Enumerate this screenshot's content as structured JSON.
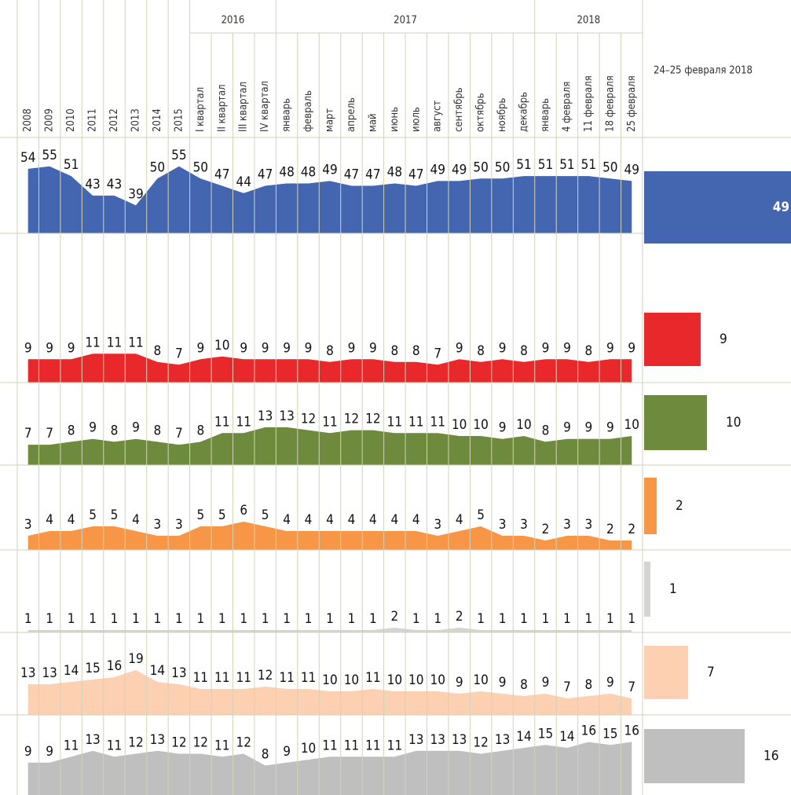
{
  "chart_data": {
    "type": "area",
    "categories": [
      "2008",
      "2009",
      "2010",
      "2011",
      "2012",
      "2013",
      "2014",
      "2015",
      "I квартал",
      "II квартал",
      "III квартал",
      "IV квартал",
      "январь",
      "февраль",
      "март",
      "апрель",
      "май",
      "июнь",
      "июль",
      "август",
      "сентябрь",
      "октябрь",
      "ноябрь",
      "декабрь",
      "январь",
      "4 февраля",
      "11 февраля",
      "18 февраля",
      "25 февраля"
    ],
    "groups": [
      "2016",
      "2017",
      "2018"
    ],
    "series": [
      {
        "color": "#4466b0",
        "values": [
          54,
          55,
          51,
          43,
          43,
          39,
          50,
          55,
          50,
          47,
          44,
          47,
          48,
          48,
          49,
          47,
          47,
          48,
          47,
          49,
          49,
          50,
          50,
          51,
          51,
          51,
          51,
          50,
          49
        ]
      },
      {
        "color": "#e8282b",
        "values": [
          9,
          9,
          9,
          11,
          11,
          11,
          8,
          7,
          9,
          10,
          9,
          9,
          9,
          9,
          8,
          9,
          9,
          8,
          8,
          7,
          9,
          8,
          9,
          8,
          9,
          9,
          8,
          9,
          9
        ]
      },
      {
        "color": "#6e8b3d",
        "values": [
          7,
          7,
          8,
          9,
          8,
          9,
          8,
          7,
          8,
          11,
          11,
          13,
          13,
          12,
          11,
          12,
          12,
          11,
          11,
          11,
          10,
          10,
          9,
          10,
          8,
          9,
          9,
          9,
          10
        ]
      },
      {
        "color": "#f79646",
        "values": [
          3,
          4,
          4,
          5,
          5,
          4,
          3,
          3,
          5,
          5,
          6,
          5,
          4,
          4,
          4,
          4,
          4,
          4,
          4,
          3,
          4,
          5,
          3,
          3,
          2,
          3,
          3,
          2,
          2
        ]
      },
      {
        "color": "#d4d4d4",
        "values": [
          1,
          1,
          1,
          1,
          1,
          1,
          1,
          1,
          1,
          1,
          1,
          1,
          1,
          1,
          1,
          1,
          1,
          2,
          1,
          1,
          2,
          1,
          1,
          1,
          1,
          1,
          1,
          1,
          1
        ]
      },
      {
        "color": "#fcd0b0",
        "values": [
          13,
          13,
          14,
          15,
          16,
          19,
          14,
          13,
          11,
          11,
          11,
          12,
          11,
          11,
          10,
          10,
          11,
          10,
          10,
          10,
          9,
          10,
          9,
          8,
          9,
          7,
          8,
          9,
          7
        ]
      },
      {
        "color": "#bfbfbf",
        "values": [
          9,
          9,
          11,
          13,
          11,
          12,
          13,
          12,
          12,
          11,
          12,
          8,
          9,
          10,
          11,
          11,
          11,
          11,
          13,
          13,
          13,
          12,
          13,
          14,
          15,
          14,
          16,
          15,
          16
        ]
      }
    ],
    "latest": {
      "title": "24–25 февраля 2018",
      "values": [
        49,
        9,
        10,
        2,
        1,
        7,
        16
      ]
    }
  }
}
